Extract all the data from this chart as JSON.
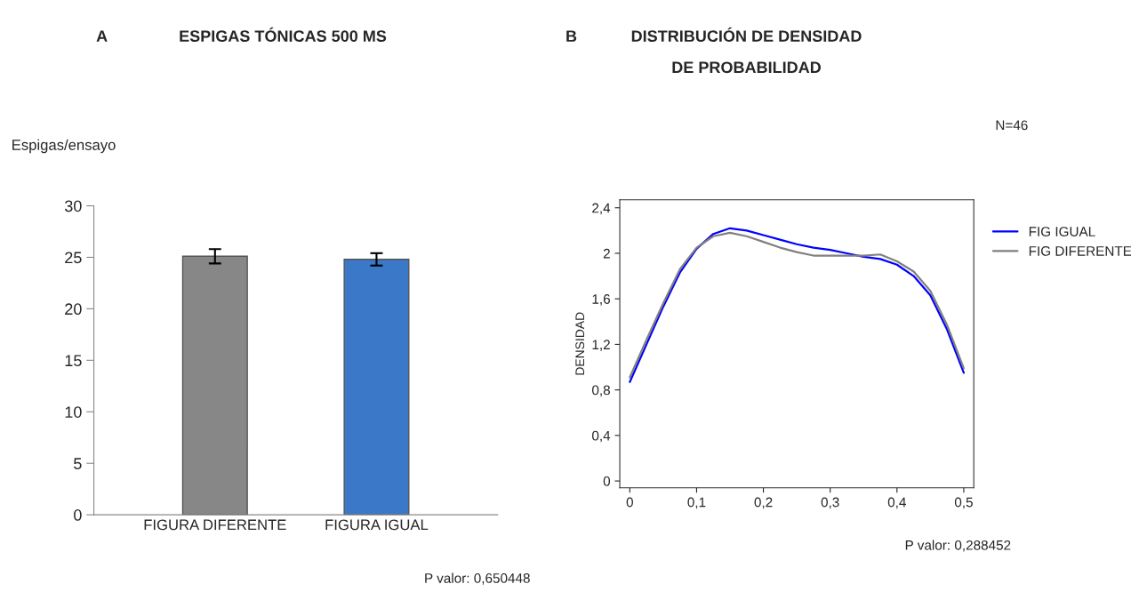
{
  "chart_data": [
    {
      "type": "bar",
      "title": "ESPIGAS TÓNICAS 500 MS",
      "ylabel": "Espigas/ensayo",
      "categories": [
        "FIGURA DIFERENTE",
        "FIGURA IGUAL"
      ],
      "values": [
        25.1,
        24.8
      ],
      "colors": [
        "#878787",
        "#3b78c8"
      ],
      "errors": [
        0.7,
        0.6
      ],
      "ylim": [
        0,
        30
      ],
      "yticks": [
        0,
        5,
        10,
        15,
        20,
        25,
        30
      ],
      "grid": false,
      "annotations": [
        "A",
        "P valor: 0,650448"
      ]
    },
    {
      "type": "line",
      "title": "DISTRIBUCIÓN DE DENSIDAD\nDE PROBABILIDAD",
      "ylabel": "DENSIDAD",
      "series": [
        {
          "name": "FIG IGUAL",
          "color": "#0000ff",
          "x": [
            0,
            0.025,
            0.05,
            0.075,
            0.1,
            0.125,
            0.15,
            0.175,
            0.2,
            0.225,
            0.25,
            0.275,
            0.3,
            0.325,
            0.35,
            0.375,
            0.4,
            0.425,
            0.45,
            0.475,
            0.5
          ],
          "values": [
            0.87,
            1.2,
            1.53,
            1.83,
            2.04,
            2.17,
            2.22,
            2.2,
            2.16,
            2.12,
            2.08,
            2.05,
            2.03,
            2.0,
            1.97,
            1.95,
            1.9,
            1.8,
            1.63,
            1.33,
            0.95
          ]
        },
        {
          "name": "FIG DIFERENTE",
          "color": "#808080",
          "x": [
            0,
            0.025,
            0.05,
            0.075,
            0.1,
            0.125,
            0.15,
            0.175,
            0.2,
            0.225,
            0.25,
            0.275,
            0.3,
            0.325,
            0.35,
            0.375,
            0.4,
            0.425,
            0.45,
            0.475,
            0.5
          ],
          "values": [
            0.91,
            1.24,
            1.56,
            1.86,
            2.05,
            2.15,
            2.18,
            2.15,
            2.1,
            2.05,
            2.01,
            1.98,
            1.98,
            1.98,
            1.98,
            1.99,
            1.93,
            1.84,
            1.67,
            1.37,
            0.99
          ]
        }
      ],
      "xlim": [
        -0.015,
        0.515
      ],
      "ylim": [
        -0.06,
        2.47
      ],
      "xticks": [
        {
          "value": 0,
          "label": "0"
        },
        {
          "value": 0.1,
          "label": "0,1"
        },
        {
          "value": 0.2,
          "label": "0,2"
        },
        {
          "value": 0.3,
          "label": "0,3"
        },
        {
          "value": 0.4,
          "label": "0,4"
        },
        {
          "value": 0.5,
          "label": "0,5"
        }
      ],
      "yticks": [
        {
          "value": 0,
          "label": "0"
        },
        {
          "value": 0.4,
          "label": "0,4"
        },
        {
          "value": 0.8,
          "label": "0,8"
        },
        {
          "value": 1.2,
          "label": "1,2"
        },
        {
          "value": 1.6,
          "label": "1,6"
        },
        {
          "value": 2,
          "label": "2"
        },
        {
          "value": 2.4,
          "label": "2,4"
        }
      ],
      "grid": false,
      "legend": "right",
      "marker": "none",
      "line_style": "solid",
      "annotations": [
        "B",
        "N=46",
        "P valor: 0,288452"
      ]
    }
  ]
}
